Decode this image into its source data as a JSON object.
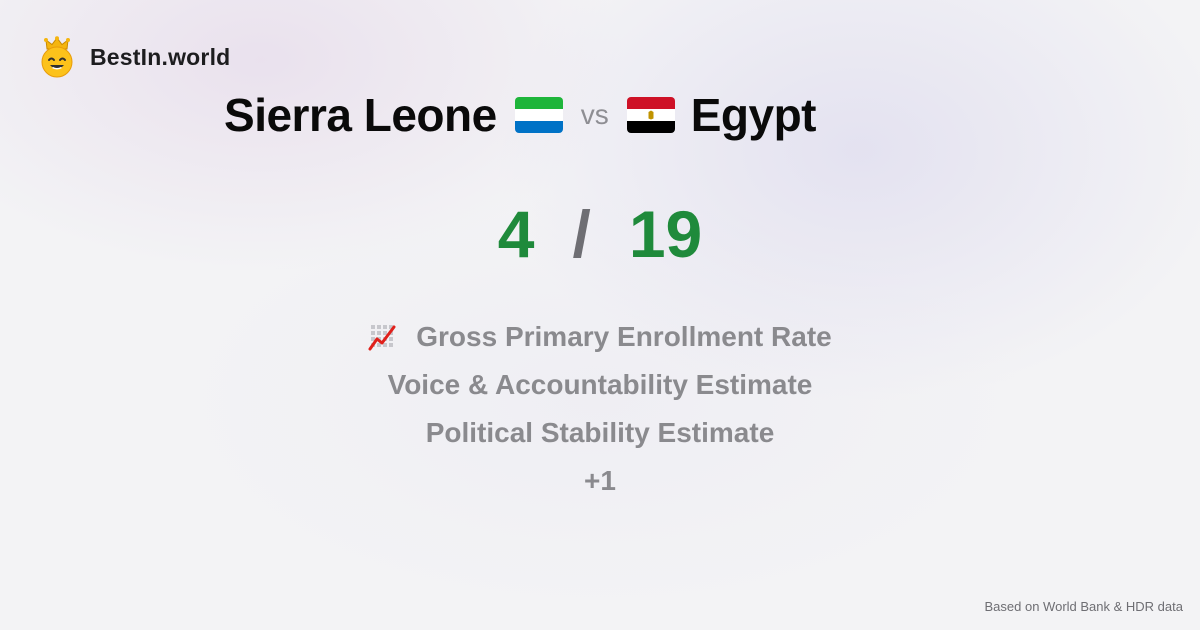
{
  "brand": {
    "name": "BestIn.world",
    "logo_icon": "crowned-smiley-icon"
  },
  "comparison": {
    "left_country": "Sierra Leone",
    "left_flag": "sierra-leone-flag-icon",
    "vs": "vs",
    "right_country": "Egypt",
    "right_flag": "egypt-flag-icon"
  },
  "score": {
    "left": "4",
    "separator": "/",
    "right": "19",
    "color": "#1f8a3b"
  },
  "metrics": {
    "icon": "chart-increasing-icon",
    "items": [
      "Gross Primary Enrollment Rate",
      "Voice & Accountability Estimate",
      "Political Stability Estimate",
      "+1"
    ]
  },
  "footer": {
    "source_note": "Based on World Bank & HDR data"
  },
  "colors": {
    "score_green": "#1f8a3b",
    "muted_text": "#8a8a8e",
    "sierra_leone": [
      "#1eb53a",
      "#ffffff",
      "#0072c6"
    ],
    "egypt": [
      "#ce1126",
      "#ffffff",
      "#000000"
    ]
  }
}
